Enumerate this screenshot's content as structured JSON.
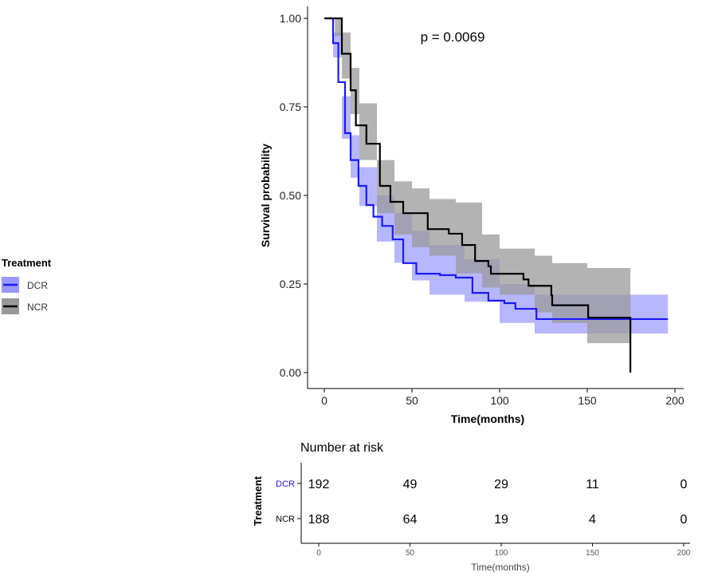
{
  "chart_data": {
    "type": "line",
    "subtype": "kaplan-meier",
    "annotation": "p = 0.0069",
    "xlabel": "Time(months)",
    "ylabel": "Survival probability",
    "xlim": [
      -10,
      205
    ],
    "ylim": [
      0,
      1
    ],
    "xticks": [
      0,
      50,
      100,
      150,
      200
    ],
    "yticks": [
      0.0,
      0.25,
      0.5,
      0.75,
      1.0
    ],
    "ytick_labels": [
      "0.00",
      "0.25",
      "0.50",
      "0.75",
      "1.00"
    ],
    "legend": {
      "title": "Treatment",
      "placement": "left",
      "entries": [
        "DCR",
        "NCR"
      ]
    },
    "colors": {
      "DCR": "#1a1aff",
      "DCR_band": "#9999ff",
      "NCR": "#000000",
      "NCR_band": "#999999"
    },
    "series": [
      {
        "name": "DCR",
        "points": [
          [
            0,
            1.0
          ],
          [
            2.3,
            1.0
          ],
          [
            5,
            0.93
          ],
          [
            8,
            0.82
          ],
          [
            11.8,
            0.676
          ],
          [
            15,
            0.6
          ],
          [
            19.5,
            0.527
          ],
          [
            24,
            0.473
          ],
          [
            28,
            0.44
          ],
          [
            33,
            0.414
          ],
          [
            39,
            0.376
          ],
          [
            45,
            0.309
          ],
          [
            52.5,
            0.279
          ],
          [
            66,
            0.275
          ],
          [
            75,
            0.268
          ],
          [
            84.5,
            0.225
          ],
          [
            93.6,
            0.203
          ],
          [
            102.7,
            0.196
          ],
          [
            109,
            0.18
          ],
          [
            121,
            0.151
          ],
          [
            196,
            0.151
          ]
        ],
        "band": [
          [
            0,
            1.0,
            1.0
          ],
          [
            5,
            0.89,
            0.96
          ],
          [
            10,
            0.66,
            0.78
          ],
          [
            15,
            0.55,
            0.67
          ],
          [
            20,
            0.47,
            0.58
          ],
          [
            30,
            0.37,
            0.5
          ],
          [
            40,
            0.31,
            0.45
          ],
          [
            50,
            0.26,
            0.4
          ],
          [
            60,
            0.22,
            0.36
          ],
          [
            80,
            0.2,
            0.32
          ],
          [
            100,
            0.14,
            0.25
          ],
          [
            120,
            0.11,
            0.22
          ],
          [
            196,
            0.106,
            0.218
          ]
        ]
      },
      {
        "name": "NCR",
        "points": [
          [
            0,
            1.0
          ],
          [
            5.7,
            1.0
          ],
          [
            10,
            0.9
          ],
          [
            15,
            0.797
          ],
          [
            18,
            0.698
          ],
          [
            24,
            0.646
          ],
          [
            31.7,
            0.527
          ],
          [
            37.7,
            0.482
          ],
          [
            45,
            0.45
          ],
          [
            59,
            0.405
          ],
          [
            71,
            0.392
          ],
          [
            78.6,
            0.36
          ],
          [
            86,
            0.315
          ],
          [
            93.6,
            0.3
          ],
          [
            95,
            0.279
          ],
          [
            113.6,
            0.263
          ],
          [
            116.5,
            0.245
          ],
          [
            129.5,
            0.218
          ],
          [
            130,
            0.19
          ],
          [
            150.5,
            0.155
          ],
          [
            174.6,
            0.155
          ],
          [
            174.6,
            0.0
          ]
        ],
        "band": [
          [
            0,
            1.0,
            1.0
          ],
          [
            6,
            0.95,
            1.0
          ],
          [
            10,
            0.83,
            0.96
          ],
          [
            15,
            0.73,
            0.86
          ],
          [
            20,
            0.6,
            0.76
          ],
          [
            30,
            0.45,
            0.6
          ],
          [
            40,
            0.39,
            0.54
          ],
          [
            50,
            0.354,
            0.52
          ],
          [
            60,
            0.33,
            0.49
          ],
          [
            75,
            0.28,
            0.48
          ],
          [
            90,
            0.24,
            0.39
          ],
          [
            100,
            0.22,
            0.35
          ],
          [
            120,
            0.17,
            0.33
          ],
          [
            130,
            0.14,
            0.309
          ],
          [
            150,
            0.083,
            0.295
          ],
          [
            174.6,
            0.083,
            0.295
          ]
        ]
      }
    ],
    "risk_table": {
      "title": "Number at risk",
      "ylabel": "Treatment",
      "xlabel": "Time(months)",
      "times": [
        0,
        50,
        100,
        150,
        200
      ],
      "tick_labels": [
        "0",
        "50",
        "100",
        "150",
        "200"
      ],
      "rows": [
        {
          "name": "DCR",
          "values": [
            "192",
            "49",
            "29",
            "11",
            "0"
          ]
        },
        {
          "name": "NCR",
          "values": [
            "188",
            "64",
            "19",
            "4",
            "0"
          ]
        }
      ]
    }
  }
}
